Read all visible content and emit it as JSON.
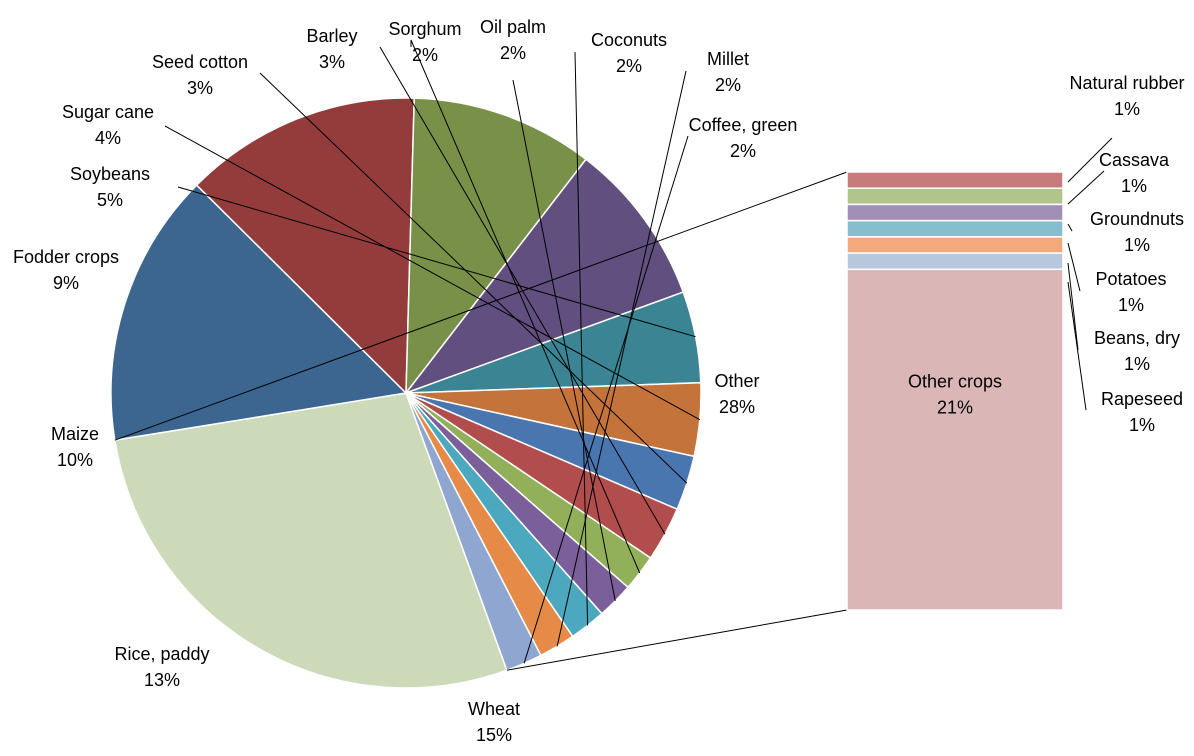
{
  "chart_data": {
    "type": "pie",
    "subtype": "bar-of-pie",
    "pie": {
      "slices": [
        {
          "label": "Other",
          "value": 28,
          "value_label": "28%",
          "color": "#CDDAB9"
        },
        {
          "label": "Wheat",
          "value": 15,
          "value_label": "15%",
          "color": "#3C6590"
        },
        {
          "label": "Rice, paddy",
          "value": 13,
          "value_label": "13%",
          "color": "#943C3C"
        },
        {
          "label": "Maize",
          "value": 10,
          "value_label": "10%",
          "color": "#789048"
        },
        {
          "label": "Fodder crops",
          "value": 9,
          "value_label": "9%",
          "color": "#614F7F"
        },
        {
          "label": "Soybeans",
          "value": 5,
          "value_label": "5%",
          "color": "#3A8494"
        },
        {
          "label": "Sugar cane",
          "value": 4,
          "value_label": "4%",
          "color": "#C4733B"
        },
        {
          "label": "Seed cotton",
          "value": 3,
          "value_label": "3%",
          "color": "#4A76B0"
        },
        {
          "label": "Barley",
          "value": 3,
          "value_label": "3%",
          "color": "#B14D4C"
        },
        {
          "label": "Sorghum",
          "value": 2,
          "value_label": "2%",
          "color": "#92B05A"
        },
        {
          "label": "Oil palm",
          "value": 2,
          "value_label": "2%",
          "color": "#7A5F9A"
        },
        {
          "label": "Coconuts",
          "value": 2,
          "value_label": "2%",
          "color": "#4BA8BF"
        },
        {
          "label": "Millet",
          "value": 2,
          "value_label": "2%",
          "color": "#E68B47"
        },
        {
          "label": "Coffee, green",
          "value": 2,
          "value_label": "2%",
          "color": "#8EA6D0"
        }
      ]
    },
    "bar": {
      "segments": [
        {
          "label": "Natural rubber",
          "value": 1,
          "value_label": "1%",
          "color": "#C87B7B"
        },
        {
          "label": "Cassava",
          "value": 1,
          "value_label": "1%",
          "color": "#B0C58C"
        },
        {
          "label": "Groundnuts",
          "value": 1,
          "value_label": "1%",
          "color": "#A18FB8"
        },
        {
          "label": "Potatoes",
          "value": 1,
          "value_label": "1%",
          "color": "#85BECF"
        },
        {
          "label": "Beans, dry",
          "value": 1,
          "value_label": "1%",
          "color": "#F3A97B"
        },
        {
          "label": "Rapeseed",
          "value": 1,
          "value_label": "1%",
          "color": "#B7C7DE"
        },
        {
          "label": "Other crops",
          "value": 21,
          "value_label": "21%",
          "color": "#DBB6B6"
        }
      ]
    },
    "title": "",
    "legend": "none"
  }
}
